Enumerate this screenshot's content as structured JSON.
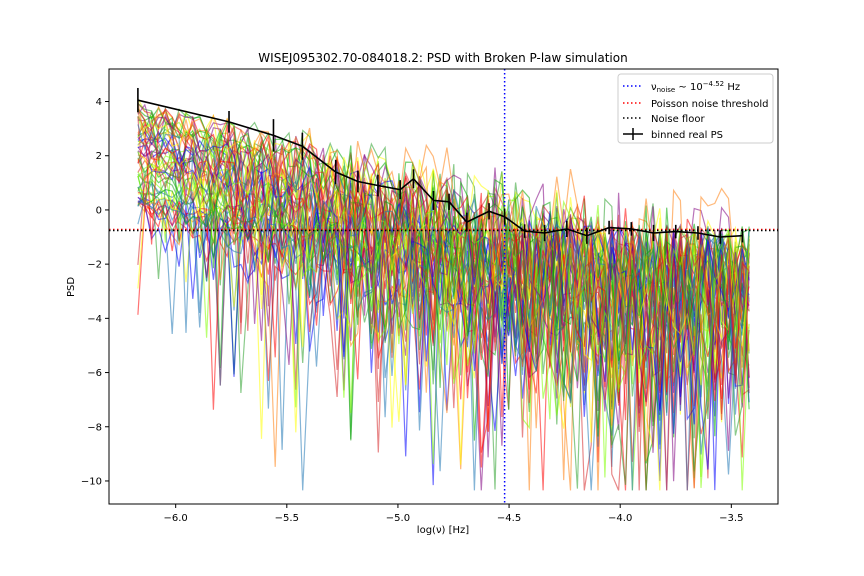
{
  "chart_data": {
    "type": "line",
    "title": "WISEJ095302.70-084018.2: PSD with Broken P-law simulation",
    "xlabel": "log(ν) [Hz]",
    "ylabel": "PSD",
    "xlim": [
      -6.3,
      -3.29
    ],
    "ylim": [
      -10.85,
      5.2
    ],
    "x_ticks": [
      -6.0,
      -5.5,
      -5.0,
      -4.5,
      -4.0,
      -3.5
    ],
    "x_tick_labels": [
      "−6.0",
      "−5.5",
      "−5.0",
      "−4.5",
      "−4.0",
      "−3.5"
    ],
    "y_ticks": [
      4,
      2,
      0,
      -2,
      -4,
      -6,
      -8,
      -10
    ],
    "y_tick_labels": [
      "4",
      "2",
      "0",
      "−2",
      "−4",
      "−6",
      "−8",
      "−10"
    ],
    "grid": false,
    "legend_position": "top-right",
    "vertical_lines": [
      {
        "name": "nu_noise",
        "x": -4.52,
        "color": "#0000ff",
        "style": "dotted"
      }
    ],
    "horizontal_lines": [
      {
        "name": "poisson-noise-threshold",
        "y": -0.72,
        "color": "#ff0000",
        "style": "dotted"
      },
      {
        "name": "noise-floor",
        "y": -0.76,
        "color": "#000000",
        "style": "dotted"
      }
    ],
    "binned_real_ps": {
      "x": [
        -6.17,
        -5.76,
        -5.56,
        -5.43,
        -5.28,
        -5.18,
        -5.09,
        -4.99,
        -4.93,
        -4.84,
        -4.77,
        -4.69,
        -4.59,
        -4.52,
        -4.43,
        -4.34,
        -4.24,
        -4.15,
        -4.05,
        -3.95,
        -3.85,
        -3.75,
        -3.65,
        -3.55,
        -3.45
      ],
      "y": [
        4.05,
        3.25,
        2.75,
        2.35,
        1.4,
        1.05,
        0.9,
        0.75,
        1.15,
        0.35,
        0.3,
        -0.45,
        -0.05,
        -0.25,
        -0.78,
        -0.85,
        -0.7,
        -0.95,
        -0.65,
        -0.7,
        -0.85,
        -0.8,
        -0.85,
        -1.0,
        -0.95
      ],
      "yerr": [
        0.45,
        0.4,
        0.6,
        0.5,
        0.45,
        0.4,
        0.4,
        0.35,
        0.35,
        0.35,
        0.3,
        0.35,
        0.3,
        0.3,
        0.25,
        0.3,
        0.3,
        0.3,
        0.25,
        0.25,
        0.3,
        0.25,
        0.25,
        0.25,
        0.25
      ]
    },
    "simulations": {
      "count_shown": 60,
      "x_start": -6.17,
      "x_end": -3.42,
      "points": 90,
      "low_freq_level_range": [
        0.5,
        4.2
      ],
      "slope_range": [
        -1.9,
        -1.2
      ],
      "high_freq_level": -1.0,
      "colors": [
        "#0000ff",
        "#ff0000",
        "#00aa00",
        "#ffff00",
        "#800080",
        "#ff7f0e",
        "#7fff00",
        "#1f77b4",
        "#d62728",
        "#2ca02c"
      ]
    },
    "legend": [
      {
        "label_pre": "ν",
        "label_sub": "noise",
        "label_mid": " ~ 10",
        "label_sup": "−4.52",
        "label_post": " Hz",
        "color": "#0000ff",
        "style": "dotted"
      },
      {
        "label": "Poisson noise threshold",
        "color": "#ff0000",
        "style": "dotted"
      },
      {
        "label": "Noise floor",
        "color": "#000000",
        "style": "dotted"
      },
      {
        "label": "binned real PS",
        "color": "#000000",
        "style": "errorbar"
      }
    ]
  }
}
